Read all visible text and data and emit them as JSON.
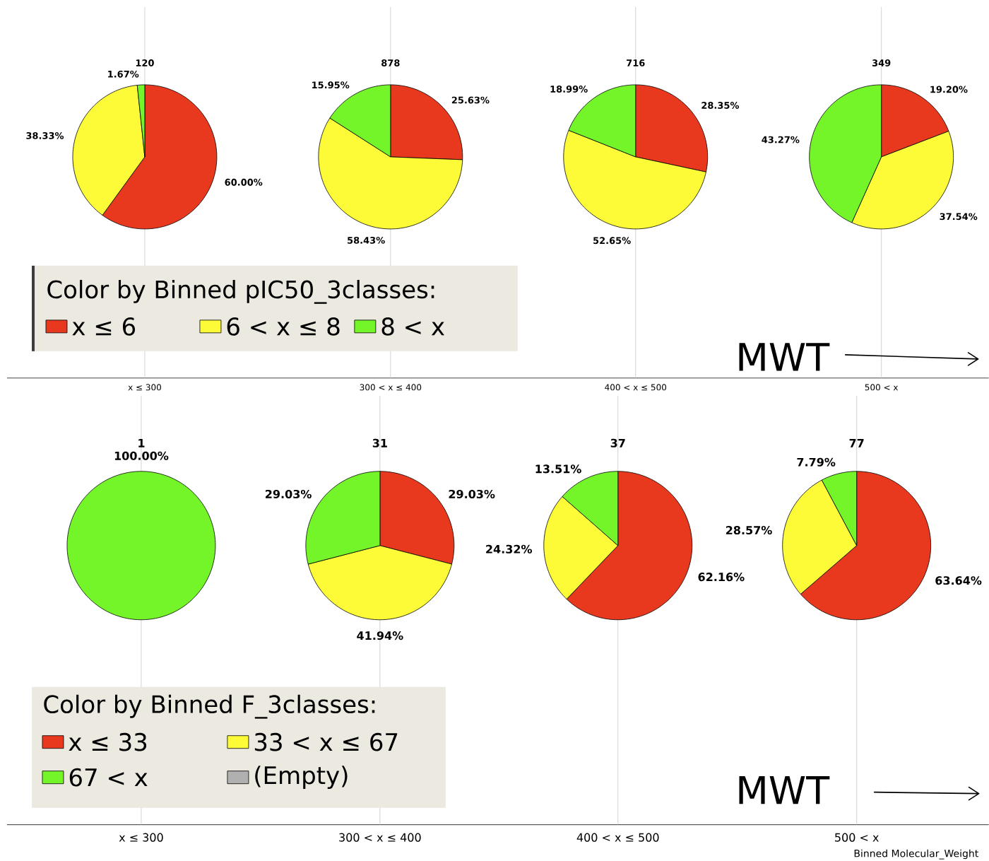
{
  "chart_data": [
    {
      "type": "pie",
      "title": "120",
      "xlabel": "x ≤ 300",
      "legend": "bottom right",
      "legend_title": "Color by Binned pIC50_3classes:",
      "categories": [
        "x ≤ 6",
        "6 < x ≤ 8",
        "8 < x"
      ],
      "values": [
        60.0,
        38.33,
        1.67
      ],
      "value_labels": [
        "60.00%",
        "38.33%",
        "1.67%"
      ],
      "colors": [
        "#e8391f",
        "#fdfb37",
        "#73f52a"
      ]
    },
    {
      "type": "pie",
      "title": "878",
      "xlabel": "300 < x ≤ 400",
      "categories": [
        null,
        null,
        null
      ],
      "values": [
        25.63,
        58.43,
        15.95
      ],
      "value_labels": [
        "25.63%",
        "58.43%",
        "15.95%"
      ],
      "colors": [
        "#e8391f",
        "#fdfb37",
        "#73f52a"
      ]
    },
    {
      "type": "pie",
      "title": "716",
      "xlabel": "400 < x ≤ 500",
      "categories": [
        null,
        null,
        null
      ],
      "values": [
        28.35,
        52.65,
        18.99
      ],
      "value_labels": [
        "28.35%",
        "52.65%",
        "18.99%"
      ],
      "colors": [
        "#e8391f",
        "#fdfb37",
        "#73f52a"
      ]
    },
    {
      "type": "pie",
      "title": "349",
      "xlabel": "500 < x",
      "annotations": [
        "MWT"
      ],
      "categories": [
        null,
        null,
        null
      ],
      "values": [
        19.2,
        37.54,
        43.27
      ],
      "value_labels": [
        "19.20%",
        "37.54%",
        "43.27%"
      ],
      "colors": [
        "#e8391f",
        "#fdfb37",
        "#73f52a"
      ]
    },
    {
      "type": "pie",
      "title": "1",
      "xlabel": "x ≤ 300",
      "legend": "bottom right",
      "legend_title": "Color by Binned F_3classes:",
      "categories": [
        "x ≤ 33",
        "33 < x ≤ 67",
        "67 < x",
        "(Empty)"
      ],
      "values": [
        0,
        0,
        100.0,
        0
      ],
      "value_labels": [
        null,
        null,
        "100.00%",
        null
      ],
      "colors": [
        "#e8391f",
        "#fdfb37",
        "#73f52a",
        "#b0b0b0"
      ]
    },
    {
      "type": "pie",
      "title": "31",
      "xlabel": "300 < x ≤ 400",
      "categories": [
        null,
        null,
        null,
        null
      ],
      "values": [
        29.03,
        41.94,
        29.03,
        0
      ],
      "value_labels": [
        "29.03%",
        "41.94%",
        "29.03%",
        null
      ],
      "colors": [
        "#e8391f",
        "#fdfb37",
        "#73f52a",
        "#b0b0b0"
      ]
    },
    {
      "type": "pie",
      "title": "37",
      "xlabel": "400 < x ≤ 500",
      "categories": [
        null,
        null,
        null,
        null
      ],
      "values": [
        62.16,
        24.32,
        13.51,
        0
      ],
      "value_labels": [
        "62.16%",
        "24.32%",
        "13.51%",
        null
      ],
      "colors": [
        "#e8391f",
        "#fdfb37",
        "#73f52a",
        "#b0b0b0"
      ]
    },
    {
      "type": "pie",
      "title": "77",
      "xlabel": "500 < x",
      "annotations": [
        "MWT",
        "Binned Molecular_Weight"
      ],
      "categories": [
        null,
        null,
        null,
        null
      ],
      "values": [
        63.64,
        28.57,
        7.79,
        0
      ],
      "value_labels": [
        "63.64%",
        "28.57%",
        "7.79%",
        null
      ],
      "colors": [
        "#e8391f",
        "#fdfb37",
        "#73f52a",
        "#b0b0b0"
      ]
    }
  ]
}
